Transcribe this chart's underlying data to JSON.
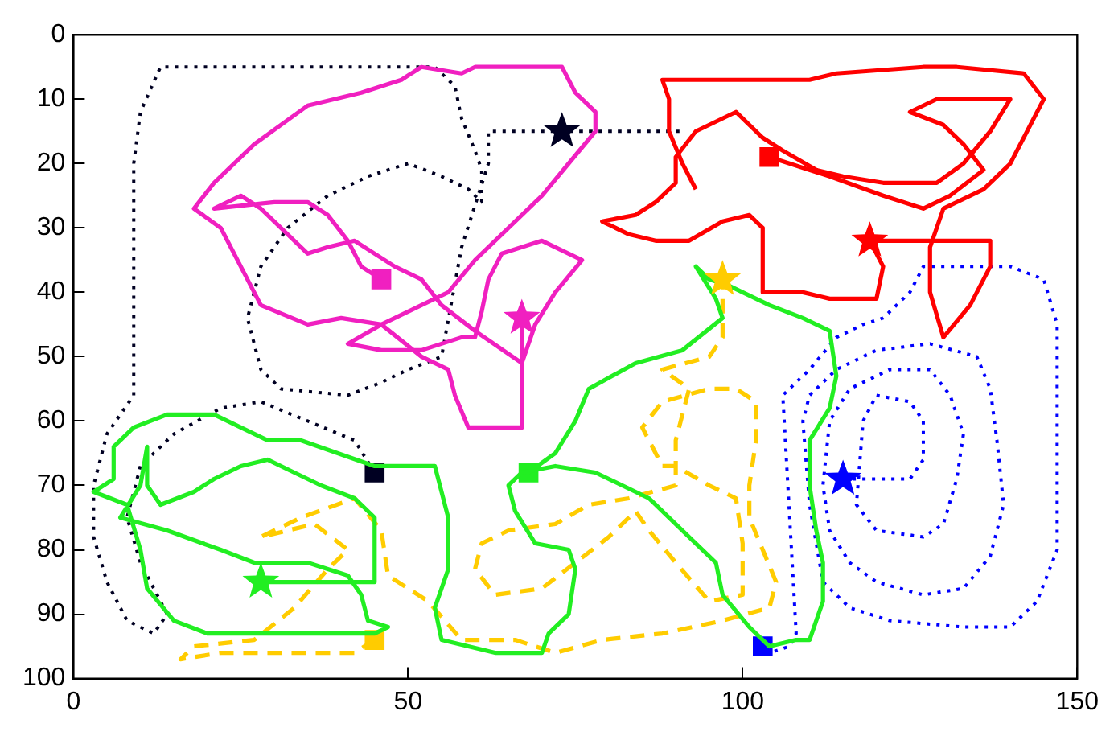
{
  "chart_data": {
    "type": "line",
    "xlim": [
      0,
      150
    ],
    "xticks": [
      0,
      50,
      100,
      150
    ],
    "ylim": [
      100,
      0
    ],
    "yticks": [
      0,
      10,
      20,
      30,
      40,
      50,
      60,
      70,
      80,
      90,
      100
    ],
    "grid": false,
    "legend": false,
    "series": [
      {
        "color": "#f020c0",
        "line_style": "solid",
        "marker": "none",
        "x": [
          67,
          67,
          59,
          57,
          56,
          52,
          46,
          40,
          35,
          28,
          26,
          22,
          18,
          21,
          27,
          35,
          43,
          49,
          52,
          58,
          60,
          73,
          75,
          78,
          78,
          74,
          70,
          65,
          60,
          56,
          52,
          46,
          41,
          46,
          52,
          58,
          60,
          61,
          62,
          64,
          70,
          76,
          72,
          69,
          67,
          60,
          55,
          52,
          48,
          45,
          42,
          38,
          35,
          32,
          28,
          25,
          21,
          30,
          35,
          38,
          41,
          43,
          46
        ],
        "values": [
          44,
          61,
          61,
          56,
          52,
          50,
          45,
          44,
          45,
          42,
          38,
          30,
          27,
          23,
          17,
          11,
          9,
          7,
          5,
          6,
          5,
          5,
          9,
          12,
          15,
          20,
          25,
          30,
          35,
          40,
          42,
          45,
          48,
          49,
          49,
          47,
          47,
          43,
          38,
          34,
          32,
          35,
          40,
          45,
          51,
          46,
          42,
          38,
          36,
          34,
          32,
          33,
          34,
          31,
          27,
          25,
          27,
          26,
          26,
          28,
          32,
          36,
          38
        ]
      },
      {
        "color": "#ff0000",
        "line_style": "solid",
        "marker": "none",
        "x": [
          104,
          113,
          121,
          127,
          131,
          136,
          133,
          130,
          125,
          129,
          140,
          137,
          133,
          129,
          121,
          115,
          111,
          106,
          103,
          99,
          93,
          90,
          90,
          87,
          84,
          79,
          83,
          87,
          92,
          97,
          101,
          103,
          103,
          109,
          113,
          120,
          121,
          119,
          137,
          137,
          134,
          130,
          128,
          128,
          130,
          136,
          140,
          143,
          145,
          142,
          132,
          127,
          114,
          110,
          88,
          89,
          89,
          91,
          93
        ],
        "values": [
          19,
          22,
          25,
          27,
          25,
          21,
          17,
          14,
          12,
          10,
          10,
          15,
          20,
          23,
          23,
          22,
          21,
          18,
          16,
          12,
          15,
          19,
          23,
          26,
          28,
          29,
          31,
          32,
          32,
          29,
          28,
          30,
          40,
          40,
          41,
          41,
          36,
          32,
          32,
          36,
          42,
          47,
          40,
          33,
          27,
          24,
          20,
          14,
          10,
          6,
          5,
          5,
          6,
          7,
          7,
          10,
          15,
          20,
          24
        ]
      },
      {
        "color": "#22ee22",
        "line_style": "solid",
        "marker": "none",
        "x": [
          28,
          45,
          45,
          42,
          37,
          33,
          29,
          25,
          21,
          18,
          13,
          11,
          11,
          10,
          7,
          14,
          22,
          27,
          35,
          41,
          43,
          44,
          47,
          45,
          30,
          20,
          15,
          11,
          10,
          8,
          3,
          6,
          6,
          9,
          14,
          21,
          29,
          34,
          45,
          54,
          56,
          56,
          54,
          55,
          63,
          70,
          71,
          74,
          75,
          74,
          69,
          66,
          65,
          67,
          72,
          78,
          86,
          91,
          96,
          97,
          101,
          104,
          108,
          110,
          112,
          112,
          111,
          110,
          110,
          113,
          114,
          113,
          109,
          104,
          98,
          95,
          93,
          96,
          97,
          91,
          84,
          77,
          75,
          72,
          68
        ],
        "values": [
          85,
          85,
          75,
          72,
          70,
          68,
          66,
          67,
          69,
          71,
          73,
          70,
          64,
          70,
          75,
          77,
          80,
          82,
          82,
          84,
          87,
          91,
          92,
          93,
          93,
          93,
          91,
          86,
          80,
          73,
          71,
          69,
          64,
          61,
          59,
          59,
          63,
          63,
          67,
          67,
          75,
          83,
          89,
          94,
          96,
          96,
          93,
          90,
          83,
          80,
          79,
          74,
          70,
          68,
          67,
          68,
          72,
          77,
          82,
          87,
          92,
          95,
          94,
          94,
          88,
          82,
          77,
          70,
          63,
          58,
          53,
          46,
          44,
          42,
          39,
          38,
          36,
          41,
          44,
          49,
          51,
          55,
          60,
          65,
          68
        ]
      },
      {
        "color": "#ffcc00",
        "line_style": "dashed",
        "marker": "none",
        "x": [
          45,
          42,
          30,
          22,
          16,
          18,
          27,
          33,
          38,
          41,
          36,
          28,
          34,
          42,
          46,
          47,
          53,
          58,
          60,
          63,
          66,
          72,
          79,
          88,
          97,
          104,
          105,
          103,
          101,
          101,
          102,
          102,
          99,
          95,
          88,
          85,
          88,
          90,
          95,
          99,
          100,
          100,
          95,
          90,
          86,
          84,
          80,
          75,
          70,
          63,
          60,
          61,
          65,
          72,
          77,
          83,
          90,
          90,
          92,
          88,
          95,
          97,
          97
        ],
        "values": [
          94,
          96,
          96,
          96,
          97,
          95,
          94,
          89,
          83,
          80,
          76,
          78,
          75,
          72,
          77,
          84,
          88,
          94,
          94,
          94,
          94,
          96,
          94,
          93,
          91,
          89,
          85,
          80,
          75,
          70,
          63,
          57,
          55,
          55,
          57,
          61,
          67,
          67,
          70,
          72,
          79,
          87,
          88,
          82,
          77,
          74,
          78,
          82,
          86,
          87,
          83,
          79,
          77,
          76,
          73,
          72,
          70,
          63,
          55,
          52,
          50,
          47,
          38
        ]
      },
      {
        "color": "#0000ff",
        "line_style": "dotted",
        "marker": "none",
        "x": [
          115,
          125,
          127,
          127,
          125,
          120,
          118,
          117,
          120,
          127,
          130,
          132,
          133,
          131,
          128,
          122,
          116,
          113,
          112,
          113,
          116,
          120,
          127,
          133,
          137,
          139,
          138,
          137,
          135,
          128,
          120,
          114,
          110,
          109,
          110,
          112,
          116,
          122,
          133,
          140,
          144,
          147,
          147,
          147,
          145,
          140,
          135,
          127,
          125,
          121,
          118,
          114,
          110,
          106,
          108,
          107,
          104,
          103
        ],
        "values": [
          69,
          69,
          66,
          60,
          57,
          56,
          60,
          73,
          77,
          78,
          76,
          69,
          62,
          56,
          52,
          52,
          55,
          60,
          70,
          77,
          82,
          85,
          87,
          86,
          81,
          73,
          63,
          55,
          50,
          48,
          49,
          52,
          56,
          60,
          73,
          85,
          89,
          91,
          92,
          92,
          88,
          80,
          60,
          45,
          38,
          36,
          36,
          36,
          40,
          44,
          45,
          47,
          52,
          56,
          93,
          95,
          96,
          95
        ]
      },
      {
        "color": "#000022",
        "line_style": "dotted",
        "marker": "none",
        "x": [
          45,
          42,
          35,
          28,
          22,
          15,
          10,
          8,
          10,
          14,
          12,
          8,
          5,
          3,
          3,
          5,
          9,
          9,
          9,
          10,
          13,
          26,
          40,
          54,
          57,
          58,
          60,
          61,
          61,
          59,
          55,
          50,
          44,
          38,
          32,
          28,
          26,
          28,
          31,
          41,
          46,
          50,
          55,
          58,
          62,
          62,
          91,
          73
        ],
        "values": [
          68,
          63,
          60,
          57,
          58,
          62,
          67,
          75,
          82,
          90,
          93,
          91,
          85,
          78,
          70,
          62,
          56,
          40,
          20,
          12,
          5,
          5,
          5,
          5,
          8,
          13,
          18,
          21,
          26,
          24,
          22,
          20,
          22,
          25,
          30,
          36,
          44,
          52,
          55,
          56,
          54,
          52,
          50,
          33,
          20,
          15,
          15,
          15
        ]
      },
      {
        "type": "scatter",
        "marker": "square",
        "x": [
          46,
          104,
          45,
          68,
          45,
          103
        ],
        "values": [
          38,
          19,
          68,
          68,
          94,
          95
        ],
        "colors": [
          "#f020c0",
          "#ff0000",
          "#000022",
          "#22ee22",
          "#ffcc00",
          "#0000ff"
        ]
      },
      {
        "type": "scatter",
        "marker": "star",
        "x": [
          73,
          119,
          97,
          67,
          115,
          28
        ],
        "values": [
          15,
          32,
          38,
          44,
          69,
          85
        ],
        "colors": [
          "#000022",
          "#ff0000",
          "#ffcc00",
          "#f020c0",
          "#0000ff",
          "#22ee22"
        ]
      }
    ]
  }
}
